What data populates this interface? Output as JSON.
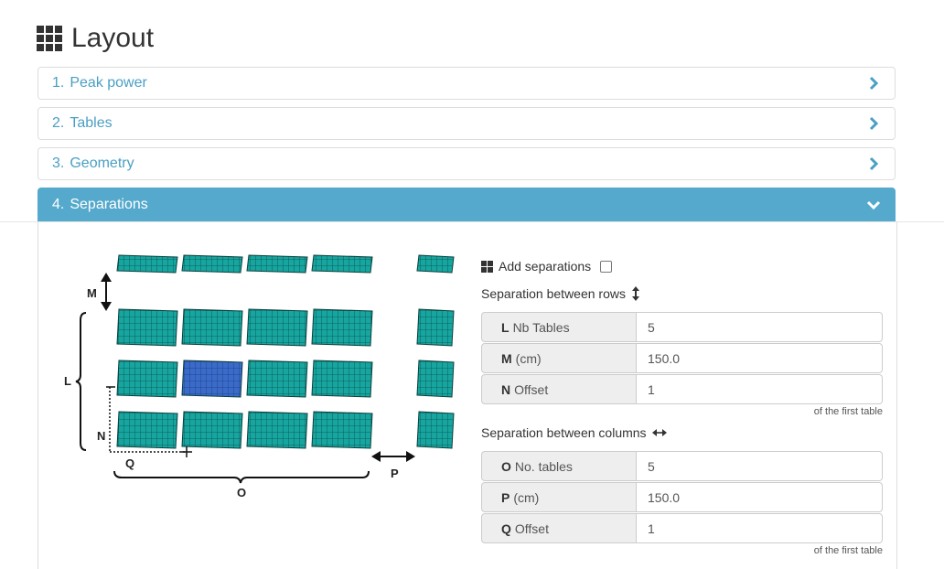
{
  "page": {
    "title": "Layout",
    "icon": "grid-icon"
  },
  "accordion": [
    {
      "number": "1.",
      "label": "Peak power",
      "icon": "chevron-right-icon"
    },
    {
      "number": "2.",
      "label": "Tables",
      "icon": "chevron-right-icon"
    },
    {
      "number": "3.",
      "label": "Geometry",
      "icon": "chevron-right-icon"
    },
    {
      "number": "4.",
      "label": "Separations",
      "icon": "chevron-down-icon"
    }
  ],
  "diagram": {
    "labels": {
      "M": "M",
      "L": "L",
      "N": "N",
      "Q": "Q",
      "O": "O",
      "P": "P"
    },
    "colors": {
      "panel": "#17a5a0",
      "panel_highlight": "#3a6bc9"
    }
  },
  "separations": {
    "add_label": "Add separations",
    "add_checked": false,
    "rows_heading": "Separation between rows",
    "rows_icon": "vertical-resize-icon",
    "rows": [
      {
        "key": "L",
        "label": "Nb Tables",
        "value": "5"
      },
      {
        "key": "M",
        "label": "(cm)",
        "value": "150.0"
      },
      {
        "key": "N",
        "label": "Offset",
        "value": "1"
      }
    ],
    "rows_hint": "of the first table",
    "cols_heading": "Separation between columns",
    "cols_icon": "horizontal-resize-icon",
    "cols": [
      {
        "key": "O",
        "label": "No. tables",
        "value": "5"
      },
      {
        "key": "P",
        "label": "(cm)",
        "value": "150.0"
      },
      {
        "key": "Q",
        "label": "Offset",
        "value": "1"
      }
    ],
    "cols_hint": "of the first table"
  },
  "colors": {
    "accent": "#54a9cc",
    "link": "#4a9fc4"
  }
}
